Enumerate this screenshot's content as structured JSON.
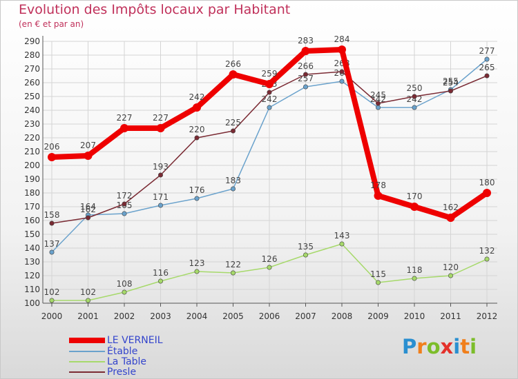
{
  "chart_data": {
    "type": "line",
    "title": "Evolution des Impôts locaux par Habitant",
    "subtitle": "(en € et par an)",
    "xlabel": "",
    "ylabel": "",
    "ylim": [
      100,
      290
    ],
    "ytick_step": 10,
    "categories": [
      "2000",
      "2001",
      "2002",
      "2003",
      "2004",
      "2005",
      "2006",
      "2007",
      "2008",
      "2009",
      "2010",
      "2011",
      "2012"
    ],
    "series": [
      {
        "name": "LE VERNEIL",
        "color": "#ee0000",
        "values": [
          206,
          207,
          227,
          227,
          242,
          266,
          259,
          283,
          284,
          178,
          170,
          162,
          180
        ]
      },
      {
        "name": "Étable",
        "color": "#6aa2cc",
        "values": [
          137,
          164,
          165,
          171,
          176,
          183,
          242,
          257,
          261,
          242,
          242,
          255,
          277
        ]
      },
      {
        "name": "La Table",
        "color": "#a6d96a",
        "values": [
          102,
          102,
          108,
          116,
          123,
          122,
          126,
          135,
          143,
          115,
          118,
          120,
          132
        ]
      },
      {
        "name": "Presle",
        "color": "#7a2a33",
        "values": [
          158,
          162,
          172,
          193,
          220,
          225,
          253,
          266,
          268,
          245,
          250,
          254,
          265
        ]
      }
    ]
  },
  "logo": {
    "letters": [
      "P",
      "r",
      "o",
      "x",
      "i",
      "t",
      "i"
    ],
    "colors": [
      "#2a8fd0",
      "#f07f1c",
      "#7cbd2a",
      "#e4312b",
      "#2a8fd0",
      "#f07f1c",
      "#7cbd2a"
    ]
  }
}
